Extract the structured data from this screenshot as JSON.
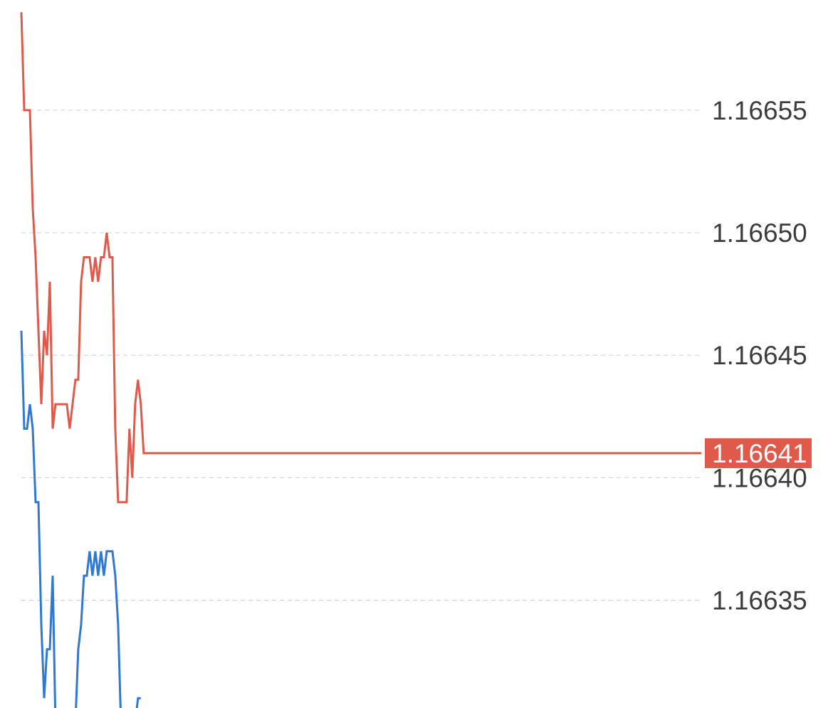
{
  "chart_data": {
    "type": "line",
    "y_ticks": [
      "1.16655",
      "1.16650",
      "1.16645",
      "1.16640",
      "1.16635"
    ],
    "y_tick_values": [
      1.16655,
      1.1665,
      1.16645,
      1.1664,
      1.16635
    ],
    "ylim": [
      1.166306,
      1.166595
    ],
    "grid": true,
    "x_points": 240,
    "series": [
      {
        "color": "#e05a4b",
        "values": [
          1.16659,
          1.16655,
          1.16655,
          1.16655,
          1.16651,
          1.16649,
          1.16646,
          1.16643,
          1.16646,
          1.16645,
          1.16648,
          1.16642,
          1.16643,
          1.16643,
          1.16643,
          1.16643,
          1.16643,
          1.16642,
          1.16643,
          1.16644,
          1.16644,
          1.16648,
          1.16649,
          1.16649,
          1.16649,
          1.16648,
          1.16649,
          1.16648,
          1.16649,
          1.16649,
          1.1665,
          1.16649,
          1.16649,
          1.16642,
          1.16639,
          1.16639,
          1.16639,
          1.16639,
          1.16642,
          1.1664,
          1.16643,
          1.16644,
          1.16643,
          1.16641,
          1.16641,
          1.16641,
          1.16641,
          1.16641,
          1.16641,
          1.16641,
          1.16641,
          1.16641,
          1.16641,
          1.16641,
          1.16641,
          1.16641,
          1.16641,
          1.16641,
          1.16641,
          1.16641,
          1.16641,
          1.16641,
          1.16641,
          1.16641,
          1.16641,
          1.16641,
          1.16641,
          1.16641,
          1.16641,
          1.16641,
          1.16641,
          1.16641,
          1.16641,
          1.16641,
          1.16641,
          1.16641,
          1.16641,
          1.16641,
          1.16641,
          1.16641,
          1.16641,
          1.16641,
          1.16641,
          1.16641,
          1.16641,
          1.16641,
          1.16641,
          1.16641,
          1.16641,
          1.16641,
          1.16641,
          1.16641,
          1.16641,
          1.16641,
          1.16641,
          1.16641,
          1.16641,
          1.16641,
          1.16641,
          1.16641,
          1.16641,
          1.16641,
          1.16641,
          1.16641,
          1.16641,
          1.16641,
          1.16641,
          1.16641,
          1.16641,
          1.16641,
          1.16641,
          1.16641,
          1.16641,
          1.16641,
          1.16641,
          1.16641,
          1.16641,
          1.16641,
          1.16641,
          1.16641,
          1.16641,
          1.16641,
          1.16641,
          1.16641,
          1.16641,
          1.16641,
          1.16641,
          1.16641,
          1.16641,
          1.16641,
          1.16641,
          1.16641,
          1.16641,
          1.16641,
          1.16641,
          1.16641,
          1.16641,
          1.16641,
          1.16641,
          1.16641,
          1.16641,
          1.16641,
          1.16641,
          1.16641,
          1.16641,
          1.16641,
          1.16641,
          1.16641,
          1.16641,
          1.16641,
          1.16641,
          1.16641,
          1.16641,
          1.16641,
          1.16641,
          1.16641,
          1.16641,
          1.16641,
          1.16641,
          1.16641,
          1.16641,
          1.16641,
          1.16641,
          1.16641,
          1.16641,
          1.16641,
          1.16641,
          1.16641,
          1.16641,
          1.16641,
          1.16641,
          1.16641,
          1.16641,
          1.16641,
          1.16641,
          1.16641,
          1.16641,
          1.16641,
          1.16641,
          1.16641,
          1.16641,
          1.16641,
          1.16641,
          1.16641,
          1.16641,
          1.16641,
          1.16641,
          1.16641,
          1.16641,
          1.16641,
          1.16641,
          1.16641,
          1.16641,
          1.16641,
          1.16641,
          1.16641,
          1.16641,
          1.16641,
          1.16641,
          1.16641,
          1.16641,
          1.16641,
          1.16641,
          1.16641,
          1.16641,
          1.16641,
          1.16641,
          1.16641,
          1.16641,
          1.16641,
          1.16641,
          1.16641,
          1.16641,
          1.16641,
          1.16641,
          1.16641,
          1.16641,
          1.16641,
          1.16641,
          1.16641,
          1.16641,
          1.16641,
          1.16641,
          1.16641,
          1.16641,
          1.16641,
          1.16641,
          1.16641,
          1.16641,
          1.16641,
          1.16641,
          1.16641,
          1.16641,
          1.16641,
          1.16641,
          1.16641,
          1.16641,
          1.16641,
          1.16641,
          1.16641
        ]
      },
      {
        "color": "#2f78d6",
        "values": [
          1.16646,
          1.16642,
          1.16642,
          1.16643,
          1.16642,
          1.16639,
          1.16639,
          1.16634,
          1.16631,
          1.16633,
          1.16633,
          1.16636,
          1.1663,
          1.1663,
          1.1663,
          1.1663,
          1.1663,
          1.1663,
          1.1663,
          1.1663,
          1.16633,
          1.16634,
          1.16636,
          1.16636,
          1.16637,
          1.16636,
          1.16637,
          1.16636,
          1.16637,
          1.16636,
          1.16637,
          1.16637,
          1.16637,
          1.16636,
          1.16634,
          1.1663,
          1.1663,
          1.1663,
          1.1663,
          1.1663,
          1.1663,
          1.16631,
          1.16631
        ]
      }
    ],
    "last_price_label": "1.16641",
    "last_price_value": 1.16641,
    "last_price_color": "#e05a4b"
  }
}
